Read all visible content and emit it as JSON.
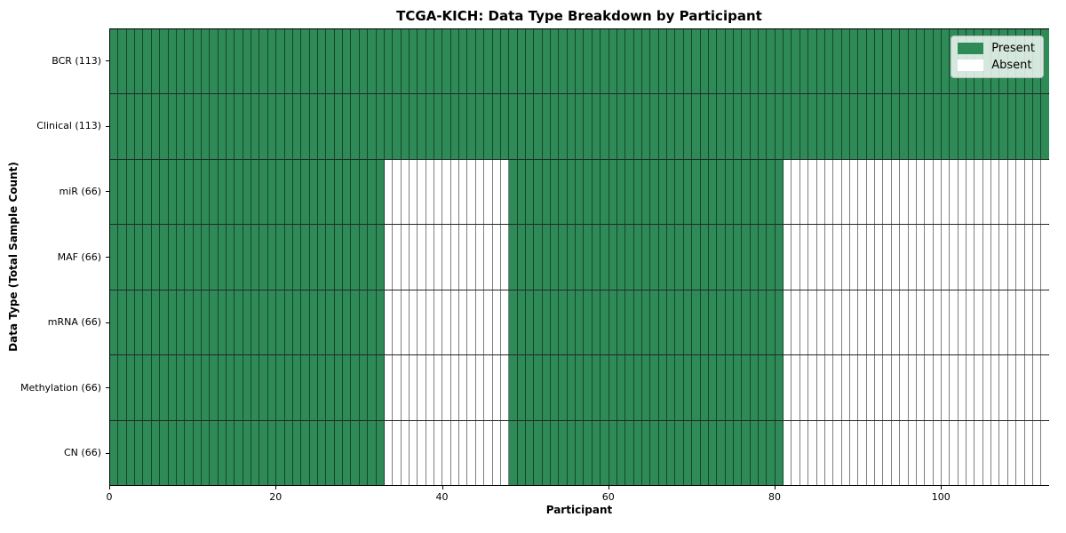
{
  "chart_data": {
    "type": "heatmap",
    "title": "TCGA-KICH: Data Type Breakdown by Participant",
    "xlabel": "Participant",
    "ylabel": "Data Type (Total Sample Count)",
    "n_participants": 113,
    "x_ticks": [
      0,
      20,
      40,
      60,
      80,
      100
    ],
    "grid": true,
    "legend_position": "upper right",
    "rows": [
      {
        "label": "BCR (113)",
        "data_type": "BCR",
        "total_sample_count": 113,
        "present_ranges": [
          [
            0,
            112
          ]
        ]
      },
      {
        "label": "Clinical (113)",
        "data_type": "Clinical",
        "total_sample_count": 113,
        "present_ranges": [
          [
            0,
            112
          ]
        ]
      },
      {
        "label": "miR (66)",
        "data_type": "miR",
        "total_sample_count": 66,
        "present_ranges": [
          [
            0,
            32
          ],
          [
            48,
            80
          ]
        ]
      },
      {
        "label": "MAF (66)",
        "data_type": "MAF",
        "total_sample_count": 66,
        "present_ranges": [
          [
            0,
            32
          ],
          [
            48,
            80
          ]
        ]
      },
      {
        "label": "mRNA (66)",
        "data_type": "mRNA",
        "total_sample_count": 66,
        "present_ranges": [
          [
            0,
            32
          ],
          [
            48,
            80
          ]
        ]
      },
      {
        "label": "Methylation (66)",
        "data_type": "Methylation",
        "total_sample_count": 66,
        "present_ranges": [
          [
            0,
            32
          ],
          [
            48,
            80
          ]
        ]
      },
      {
        "label": "CN (66)",
        "data_type": "CN",
        "total_sample_count": 66,
        "present_ranges": [
          [
            0,
            32
          ],
          [
            48,
            80
          ]
        ]
      }
    ],
    "legend": [
      {
        "label": "Present",
        "color": "#2e8b57"
      },
      {
        "label": "Absent",
        "color": "#ffffff"
      }
    ],
    "colors": {
      "present": "#2e8b57",
      "absent": "#ffffff",
      "grid": "#00000080",
      "row_separator": "#000000d9",
      "spine": "#000000"
    }
  }
}
